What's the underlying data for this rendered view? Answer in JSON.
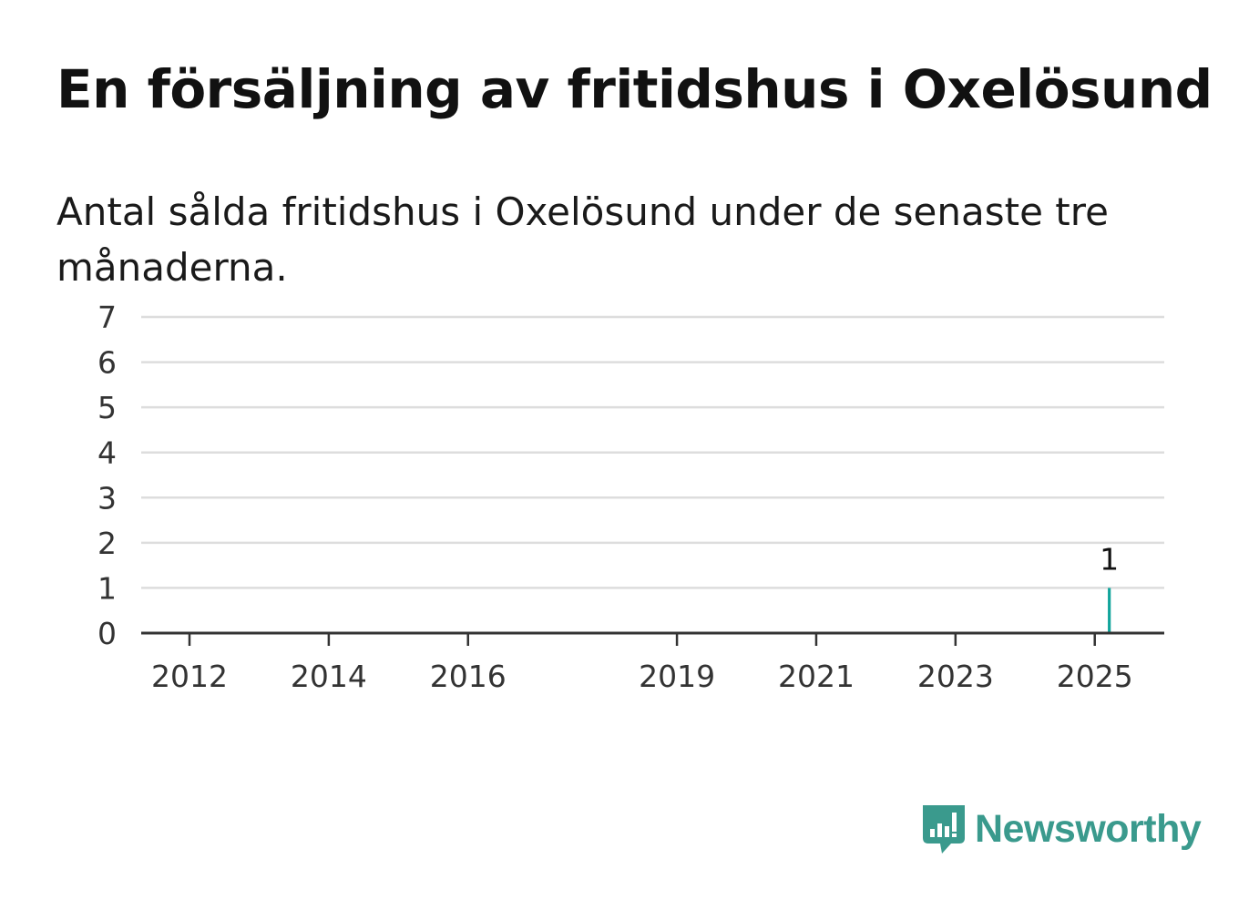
{
  "title": "En försäljning av fritidshus i Oxelösund",
  "subtitle": "Antal sålda fritidshus i Oxelösund under de senaste tre månaderna.",
  "brand": {
    "name": "Newsworthy",
    "icon": "newsworthy-logo-icon",
    "color": "#3a9a8d"
  },
  "colors": {
    "bar": "#76767c",
    "highlight": "#11a49b",
    "grid": "#dddddd",
    "axis": "#333333"
  },
  "chart_data": {
    "type": "bar",
    "x_type": "month",
    "x_start": "2011-01",
    "x_end": "2025-03",
    "ylim": [
      0,
      7
    ],
    "yticks": [
      0,
      1,
      2,
      3,
      4,
      5,
      6,
      7
    ],
    "xticks": [
      "2012",
      "2014",
      "2016",
      "2019",
      "2021",
      "2023",
      "2025"
    ],
    "grid": true,
    "legend": "none",
    "values": [
      0,
      0,
      0,
      0,
      0,
      0,
      0,
      0,
      0,
      0,
      0,
      0,
      0,
      0,
      0,
      0,
      0,
      0,
      0,
      0,
      0,
      0,
      0,
      0,
      0,
      0,
      0,
      0,
      0,
      0,
      0,
      0,
      0,
      0,
      0,
      0,
      0,
      0,
      0,
      0,
      0,
      0,
      0,
      0,
      0,
      0,
      0,
      0,
      0,
      0,
      0,
      0,
      0,
      0,
      0,
      0,
      0,
      0,
      0,
      0,
      0,
      0,
      0,
      0,
      0,
      0,
      0,
      0,
      0,
      0,
      0,
      0,
      0,
      0,
      0,
      0,
      0,
      0,
      0,
      0,
      0,
      0,
      0,
      0,
      0,
      0,
      0,
      0,
      0,
      0,
      0,
      0,
      0,
      0,
      0,
      0,
      0,
      0,
      0,
      0,
      0,
      0,
      0,
      0,
      0,
      0,
      0,
      0,
      0,
      0,
      0,
      0,
      0,
      0,
      0,
      0,
      0,
      0,
      0,
      0,
      0,
      0,
      0,
      0,
      0,
      0,
      0,
      0,
      0,
      0,
      0,
      0,
      0,
      0,
      0,
      0,
      0,
      0,
      0,
      0,
      0,
      0,
      0,
      0,
      0,
      0,
      0,
      0,
      0,
      0,
      0,
      0,
      0,
      0,
      0,
      0,
      0,
      0,
      0,
      0,
      0,
      0,
      0,
      0,
      0,
      0,
      0,
      0,
      0,
      0,
      1
    ],
    "highlight_index": 170,
    "highlight_label": "1"
  }
}
